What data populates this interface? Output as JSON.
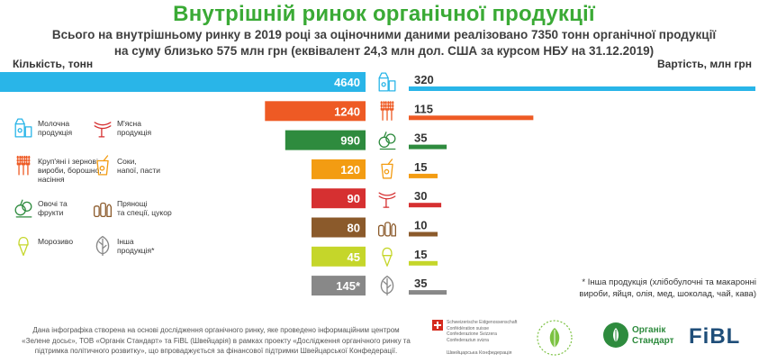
{
  "title": "Внутрішній ринок органічної продукції",
  "subtitle_line1": "Всього на внутрішньому ринку в 2019 році за оціночними даними реалізовано 7350 тонн органічної продукції",
  "subtitle_line2": "на суму близько 575 млн грн (еквівалент 24,3 млн дол. США за курсом НБУ на 31.12.2019)",
  "chart_data": {
    "type": "bar",
    "left_axis_label": "Кількість, тонн",
    "right_axis_label": "Вартість, млн грн",
    "rows": [
      {
        "category": "Молочна продукція",
        "quantity": 4640,
        "quantity_label": "4640",
        "value": 320,
        "value_label": "320",
        "color": "#29b5e8",
        "icon": "milk-icon"
      },
      {
        "category": "Круп'яні і зернові вироби, борошно, насіння",
        "quantity": 1240,
        "quantity_label": "1240",
        "value": 115,
        "value_label": "115",
        "color": "#ee5a24",
        "icon": "grain-icon"
      },
      {
        "category": "Овочі та фрукти",
        "quantity": 990,
        "quantity_label": "990",
        "value": 35,
        "value_label": "35",
        "color": "#2e8b3e",
        "icon": "vegetables-icon"
      },
      {
        "category": "Соки, напої, пасти",
        "quantity": 120,
        "quantity_label": "120",
        "value": 15,
        "value_label": "15",
        "color": "#f39c12",
        "icon": "juice-icon"
      },
      {
        "category": "М'ясна продукція",
        "quantity": 90,
        "quantity_label": "90",
        "value": 30,
        "value_label": "30",
        "color": "#d63031",
        "icon": "sausage-icon"
      },
      {
        "category": "Прянощі та спеції, цукор",
        "quantity": 80,
        "quantity_label": "80",
        "value": 10,
        "value_label": "10",
        "color": "#8b5a2b",
        "icon": "spices-icon"
      },
      {
        "category": "Морозиво",
        "quantity": 45,
        "quantity_label": "45",
        "value": 15,
        "value_label": "15",
        "color": "#c5d62a",
        "icon": "icecream-icon"
      },
      {
        "category": "Інша продукція*",
        "quantity": 145,
        "quantity_label": "145*",
        "value": 35,
        "value_label": "35",
        "color": "#888888",
        "icon": "leaf-icon"
      }
    ]
  },
  "legend": [
    {
      "label": "Молочна\nпродукція",
      "icon": "milk-icon",
      "color": "#29b5e8"
    },
    {
      "label": "М'ясна\nпродукція",
      "icon": "sausage-icon",
      "color": "#d63031"
    },
    {
      "label": "Круп'яні і зернові\nвироби, борошно,\nнасіння",
      "icon": "grain-icon",
      "color": "#ee5a24"
    },
    {
      "label": "Соки,\nнапої, пасти",
      "icon": "juice-icon",
      "color": "#f39c12"
    },
    {
      "label": "Овочі та\nфрукти",
      "icon": "vegetables-icon",
      "color": "#2e8b3e"
    },
    {
      "label": "Прянощі\nта спеції, цукор",
      "icon": "spices-icon",
      "color": "#8b5a2b"
    },
    {
      "label": "Морозиво",
      "icon": "icecream-icon",
      "color": "#c5d62a"
    },
    {
      "label": "Інша\nпродукція*",
      "icon": "leaf-icon",
      "color": "#888888"
    }
  ],
  "footnote": "* Інша продукція (хлібобулочні та макаронні вироби, яйця, олія, мед, шоколад, чай, кава)",
  "footer": {
    "text": "Дана інфографіка створена на основі дослідження органічного ринку, яке проведено інформаційним центром «Зелене досьє», ТОВ «Органік Стандарт» та FiBL (Швейцарія) в рамках проекту «Дослідження органічного ринку та підтримка політичного розвитку», що впроваджується за фінансової підтримки Швейцарської Конфедерації.",
    "swiss_text": "Schweizerische Eidgenossenschaft\nConfédération suisse\nConfederazione Svizzera\nConfederaziun svizra",
    "swiss_sub": "Швейцарська Конфедерація",
    "organic_standard": "Органік\nСтандарт",
    "fibl": "FiBL"
  }
}
